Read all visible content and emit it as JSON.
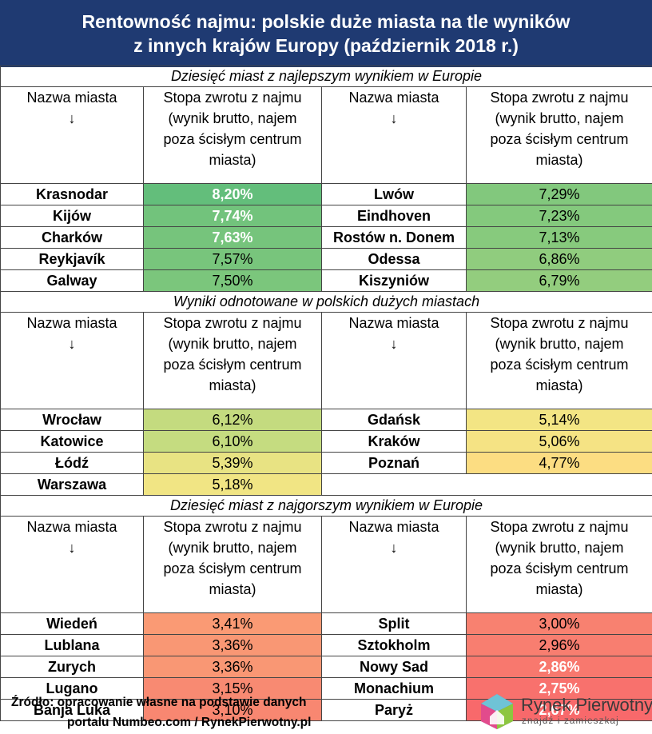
{
  "title": {
    "line1": "Rentowność najmu: polskie duże miasta na tle wyników",
    "line2": "z innych krajów Europy (październik 2018 r.)"
  },
  "headers": {
    "city": "Nazwa miasta",
    "arrow": "↓",
    "yield_l1": "Stopa zwrotu z najmu",
    "yield_l2": "(wynik brutto, najem",
    "yield_l3": "poza ścisłym centrum",
    "yield_l4": "miasta)"
  },
  "sections": [
    {
      "title": "Dziesięć miast z najlepszym wynikiem w Europie",
      "left": [
        {
          "city": "Krasnodar",
          "value": "8,20%",
          "color": "#63be7b",
          "bold": true
        },
        {
          "city": "Kijów",
          "value": "7,74%",
          "color": "#72c37c",
          "bold": true
        },
        {
          "city": "Charków",
          "value": "7,63%",
          "color": "#76c47c",
          "bold": true
        },
        {
          "city": "Reykjavík",
          "value": "7,57%",
          "color": "#78c57c",
          "bold": false
        },
        {
          "city": "Galway",
          "value": "7,50%",
          "color": "#7bc67c",
          "bold": false
        }
      ],
      "right": [
        {
          "city": "Lwów",
          "value": "7,29%",
          "color": "#82c87d",
          "bold": false
        },
        {
          "city": "Eindhoven",
          "value": "7,23%",
          "color": "#84c97d",
          "bold": false
        },
        {
          "city": "Rostów n. Donem",
          "value": "7,13%",
          "color": "#87ca7d",
          "bold": false
        },
        {
          "city": "Odessa",
          "value": "6,86%",
          "color": "#90cc7e",
          "bold": false
        },
        {
          "city": "Kiszyniów",
          "value": "6,79%",
          "color": "#93cd7e",
          "bold": false
        }
      ]
    },
    {
      "title": "Wyniki odnotowane w polskich dużych miastach",
      "left": [
        {
          "city": "Wrocław",
          "value": "6,12%",
          "color": "#c4db7f",
          "bold": false
        },
        {
          "city": "Katowice",
          "value": "6,10%",
          "color": "#c5dc80",
          "bold": false
        },
        {
          "city": "Łódź",
          "value": "5,39%",
          "color": "#e8e383",
          "bold": false
        },
        {
          "city": "Warszawa",
          "value": "5,18%",
          "color": "#f1e584",
          "bold": false
        }
      ],
      "right": [
        {
          "city": "Gdańsk",
          "value": "5,14%",
          "color": "#f3e584",
          "bold": false
        },
        {
          "city": "Kraków",
          "value": "5,06%",
          "color": "#f5e384",
          "bold": false
        },
        {
          "city": "Poznań",
          "value": "4,77%",
          "color": "#fcdd82",
          "bold": false
        }
      ]
    },
    {
      "title": "Dziesięć miast z najgorszym wynikiem w Europie",
      "left": [
        {
          "city": "Wiedeń",
          "value": "3,41%",
          "color": "#fa9a74",
          "bold": false
        },
        {
          "city": "Lublana",
          "value": "3,36%",
          "color": "#f99774",
          "bold": false
        },
        {
          "city": "Zurych",
          "value": "3,36%",
          "color": "#f99774",
          "bold": false
        },
        {
          "city": "Lugano",
          "value": "3,15%",
          "color": "#f88a72",
          "bold": false
        },
        {
          "city": "Banja Luka",
          "value": "3,10%",
          "color": "#f88771",
          "bold": false
        }
      ],
      "right": [
        {
          "city": "Split",
          "value": "3,00%",
          "color": "#f88170",
          "bold": false
        },
        {
          "city": "Sztokholm",
          "value": "2,96%",
          "color": "#f87e70",
          "bold": false
        },
        {
          "city": "Nowy Sad",
          "value": "2,86%",
          "color": "#f8786e",
          "bold": true
        },
        {
          "city": "Monachium",
          "value": "2,75%",
          "color": "#f8716d",
          "bold": true
        },
        {
          "city": "Paryż",
          "value": "2,67%",
          "color": "#f8696b",
          "bold": true
        }
      ]
    }
  ],
  "source": {
    "line1": "Źródło: opracowanie własne na podstawie danych",
    "line2": "portalu Numbeo.com / RynekPierwotny.pl"
  },
  "logo": {
    "name": "Rynek Pierwotny",
    "tagline": "znajdź i zamieszkaj",
    "icon": "house-logo-icon"
  }
}
